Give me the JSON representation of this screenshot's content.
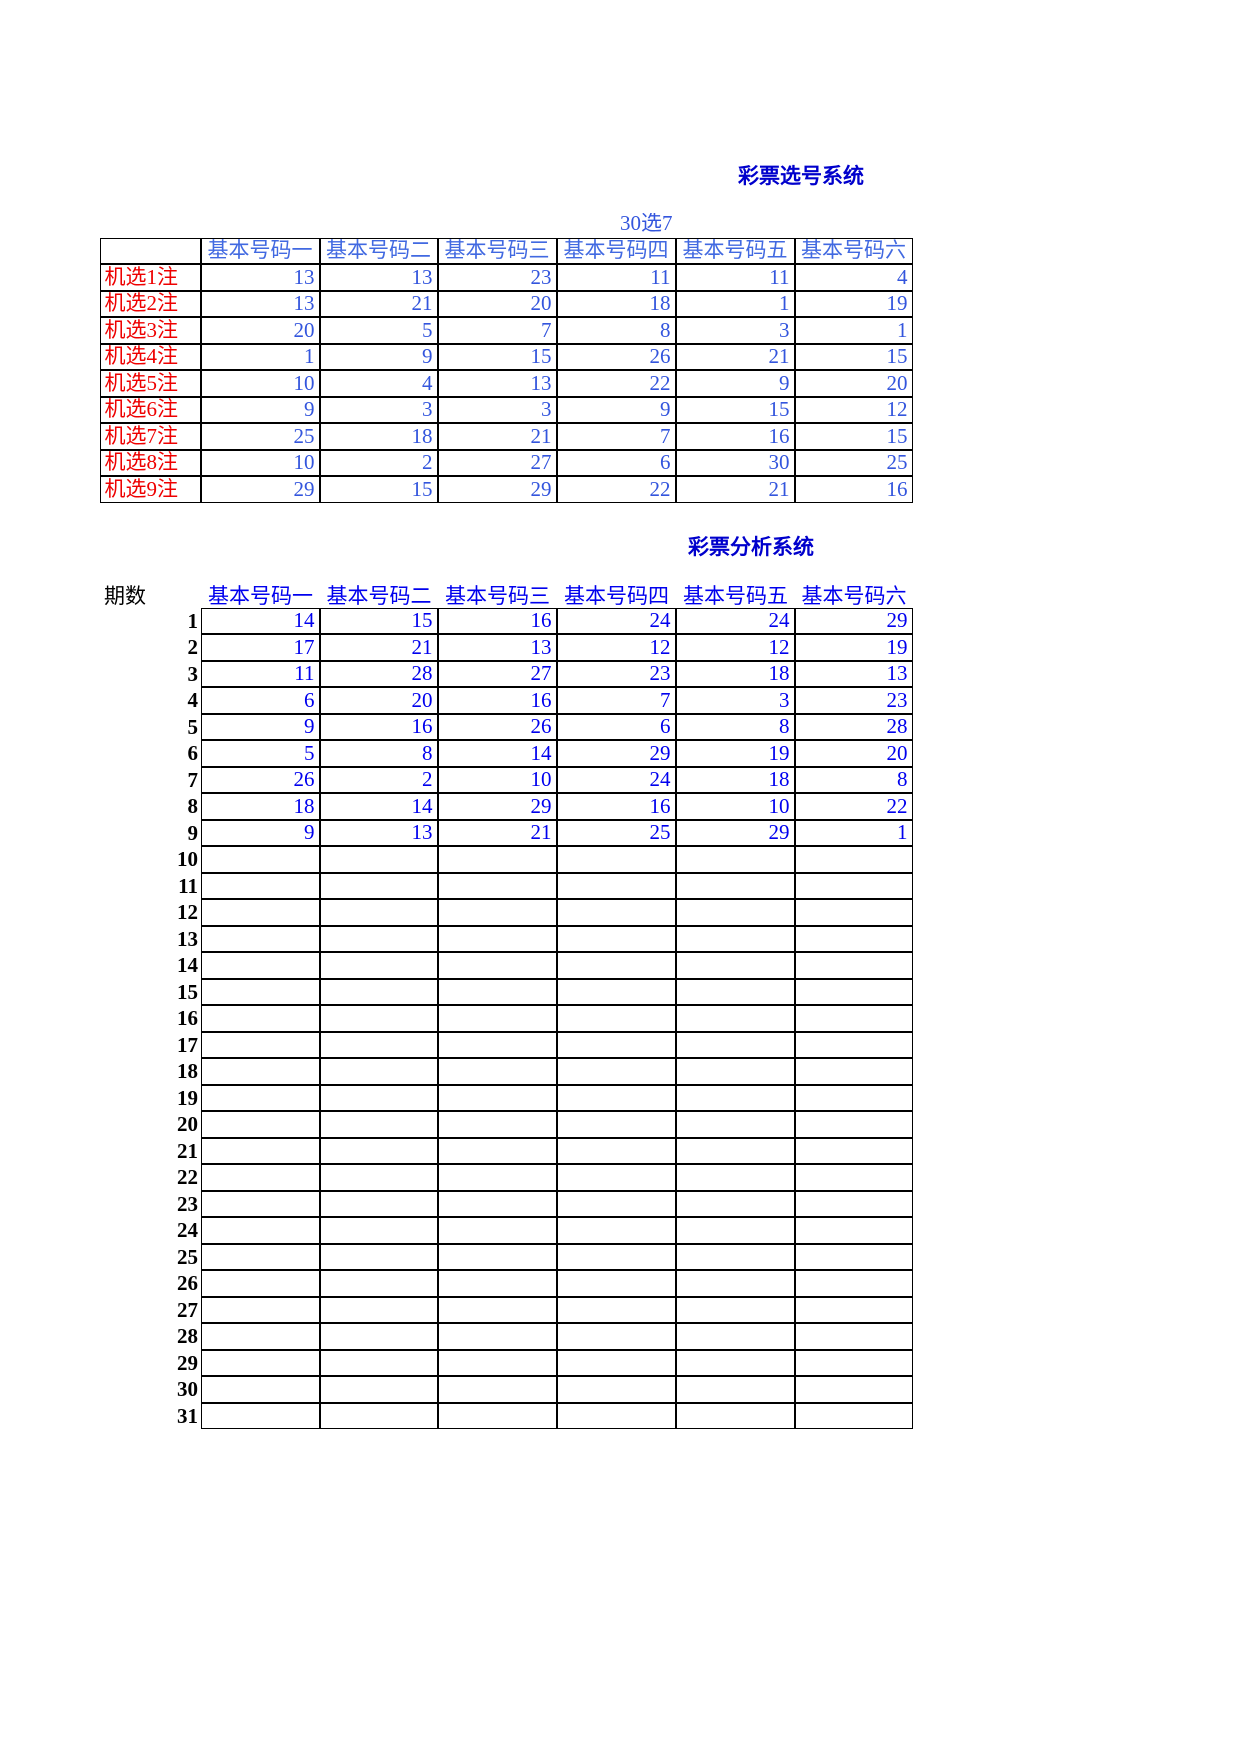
{
  "selection": {
    "title": "彩票选号系统",
    "subtitle": "30选7",
    "columns": [
      "基本号码一",
      "基本号码二",
      "基本号码三",
      "基本号码四",
      "基本号码五",
      "基本号码六"
    ],
    "rows": [
      {
        "label": "机选1注",
        "values": [
          13,
          13,
          23,
          11,
          11,
          4
        ]
      },
      {
        "label": "机选2注",
        "values": [
          13,
          21,
          20,
          18,
          1,
          19
        ]
      },
      {
        "label": "机选3注",
        "values": [
          20,
          5,
          7,
          8,
          3,
          1
        ]
      },
      {
        "label": "机选4注",
        "values": [
          1,
          9,
          15,
          26,
          21,
          15
        ]
      },
      {
        "label": "机选5注",
        "values": [
          10,
          4,
          13,
          22,
          9,
          20
        ]
      },
      {
        "label": "机选6注",
        "values": [
          9,
          3,
          3,
          9,
          15,
          12
        ]
      },
      {
        "label": "机选7注",
        "values": [
          25,
          18,
          21,
          7,
          16,
          15
        ]
      },
      {
        "label": "机选8注",
        "values": [
          10,
          2,
          27,
          6,
          30,
          25
        ]
      },
      {
        "label": "机选9注",
        "values": [
          29,
          15,
          29,
          22,
          21,
          16
        ]
      }
    ]
  },
  "analysis": {
    "title": "彩票分析系统",
    "period_header": "期数",
    "columns": [
      "基本号码一",
      "基本号码二",
      "基本号码三",
      "基本号码四",
      "基本号码五",
      "基本号码六"
    ],
    "rows": [
      {
        "period": 1,
        "values": [
          14,
          15,
          16,
          24,
          24,
          29
        ]
      },
      {
        "period": 2,
        "values": [
          17,
          21,
          13,
          12,
          12,
          19
        ]
      },
      {
        "period": 3,
        "values": [
          11,
          28,
          27,
          23,
          18,
          13
        ]
      },
      {
        "period": 4,
        "values": [
          6,
          20,
          16,
          7,
          3,
          23
        ]
      },
      {
        "period": 5,
        "values": [
          9,
          16,
          26,
          6,
          8,
          28
        ]
      },
      {
        "period": 6,
        "values": [
          5,
          8,
          14,
          29,
          19,
          20
        ]
      },
      {
        "period": 7,
        "values": [
          26,
          2,
          10,
          24,
          18,
          8
        ]
      },
      {
        "period": 8,
        "values": [
          18,
          14,
          29,
          16,
          10,
          22
        ]
      },
      {
        "period": 9,
        "values": [
          9,
          13,
          21,
          25,
          29,
          1
        ]
      },
      {
        "period": 10
      },
      {
        "period": 11
      },
      {
        "period": 12
      },
      {
        "period": 13
      },
      {
        "period": 14
      },
      {
        "period": 15
      },
      {
        "period": 16
      },
      {
        "period": 17
      },
      {
        "period": 18
      },
      {
        "period": 19
      },
      {
        "period": 20
      },
      {
        "period": 21
      },
      {
        "period": 22
      },
      {
        "period": 23
      },
      {
        "period": 24
      },
      {
        "period": 25
      },
      {
        "period": 26
      },
      {
        "period": 27
      },
      {
        "period": 28
      },
      {
        "period": 29
      },
      {
        "period": 30
      },
      {
        "period": 31
      }
    ]
  }
}
